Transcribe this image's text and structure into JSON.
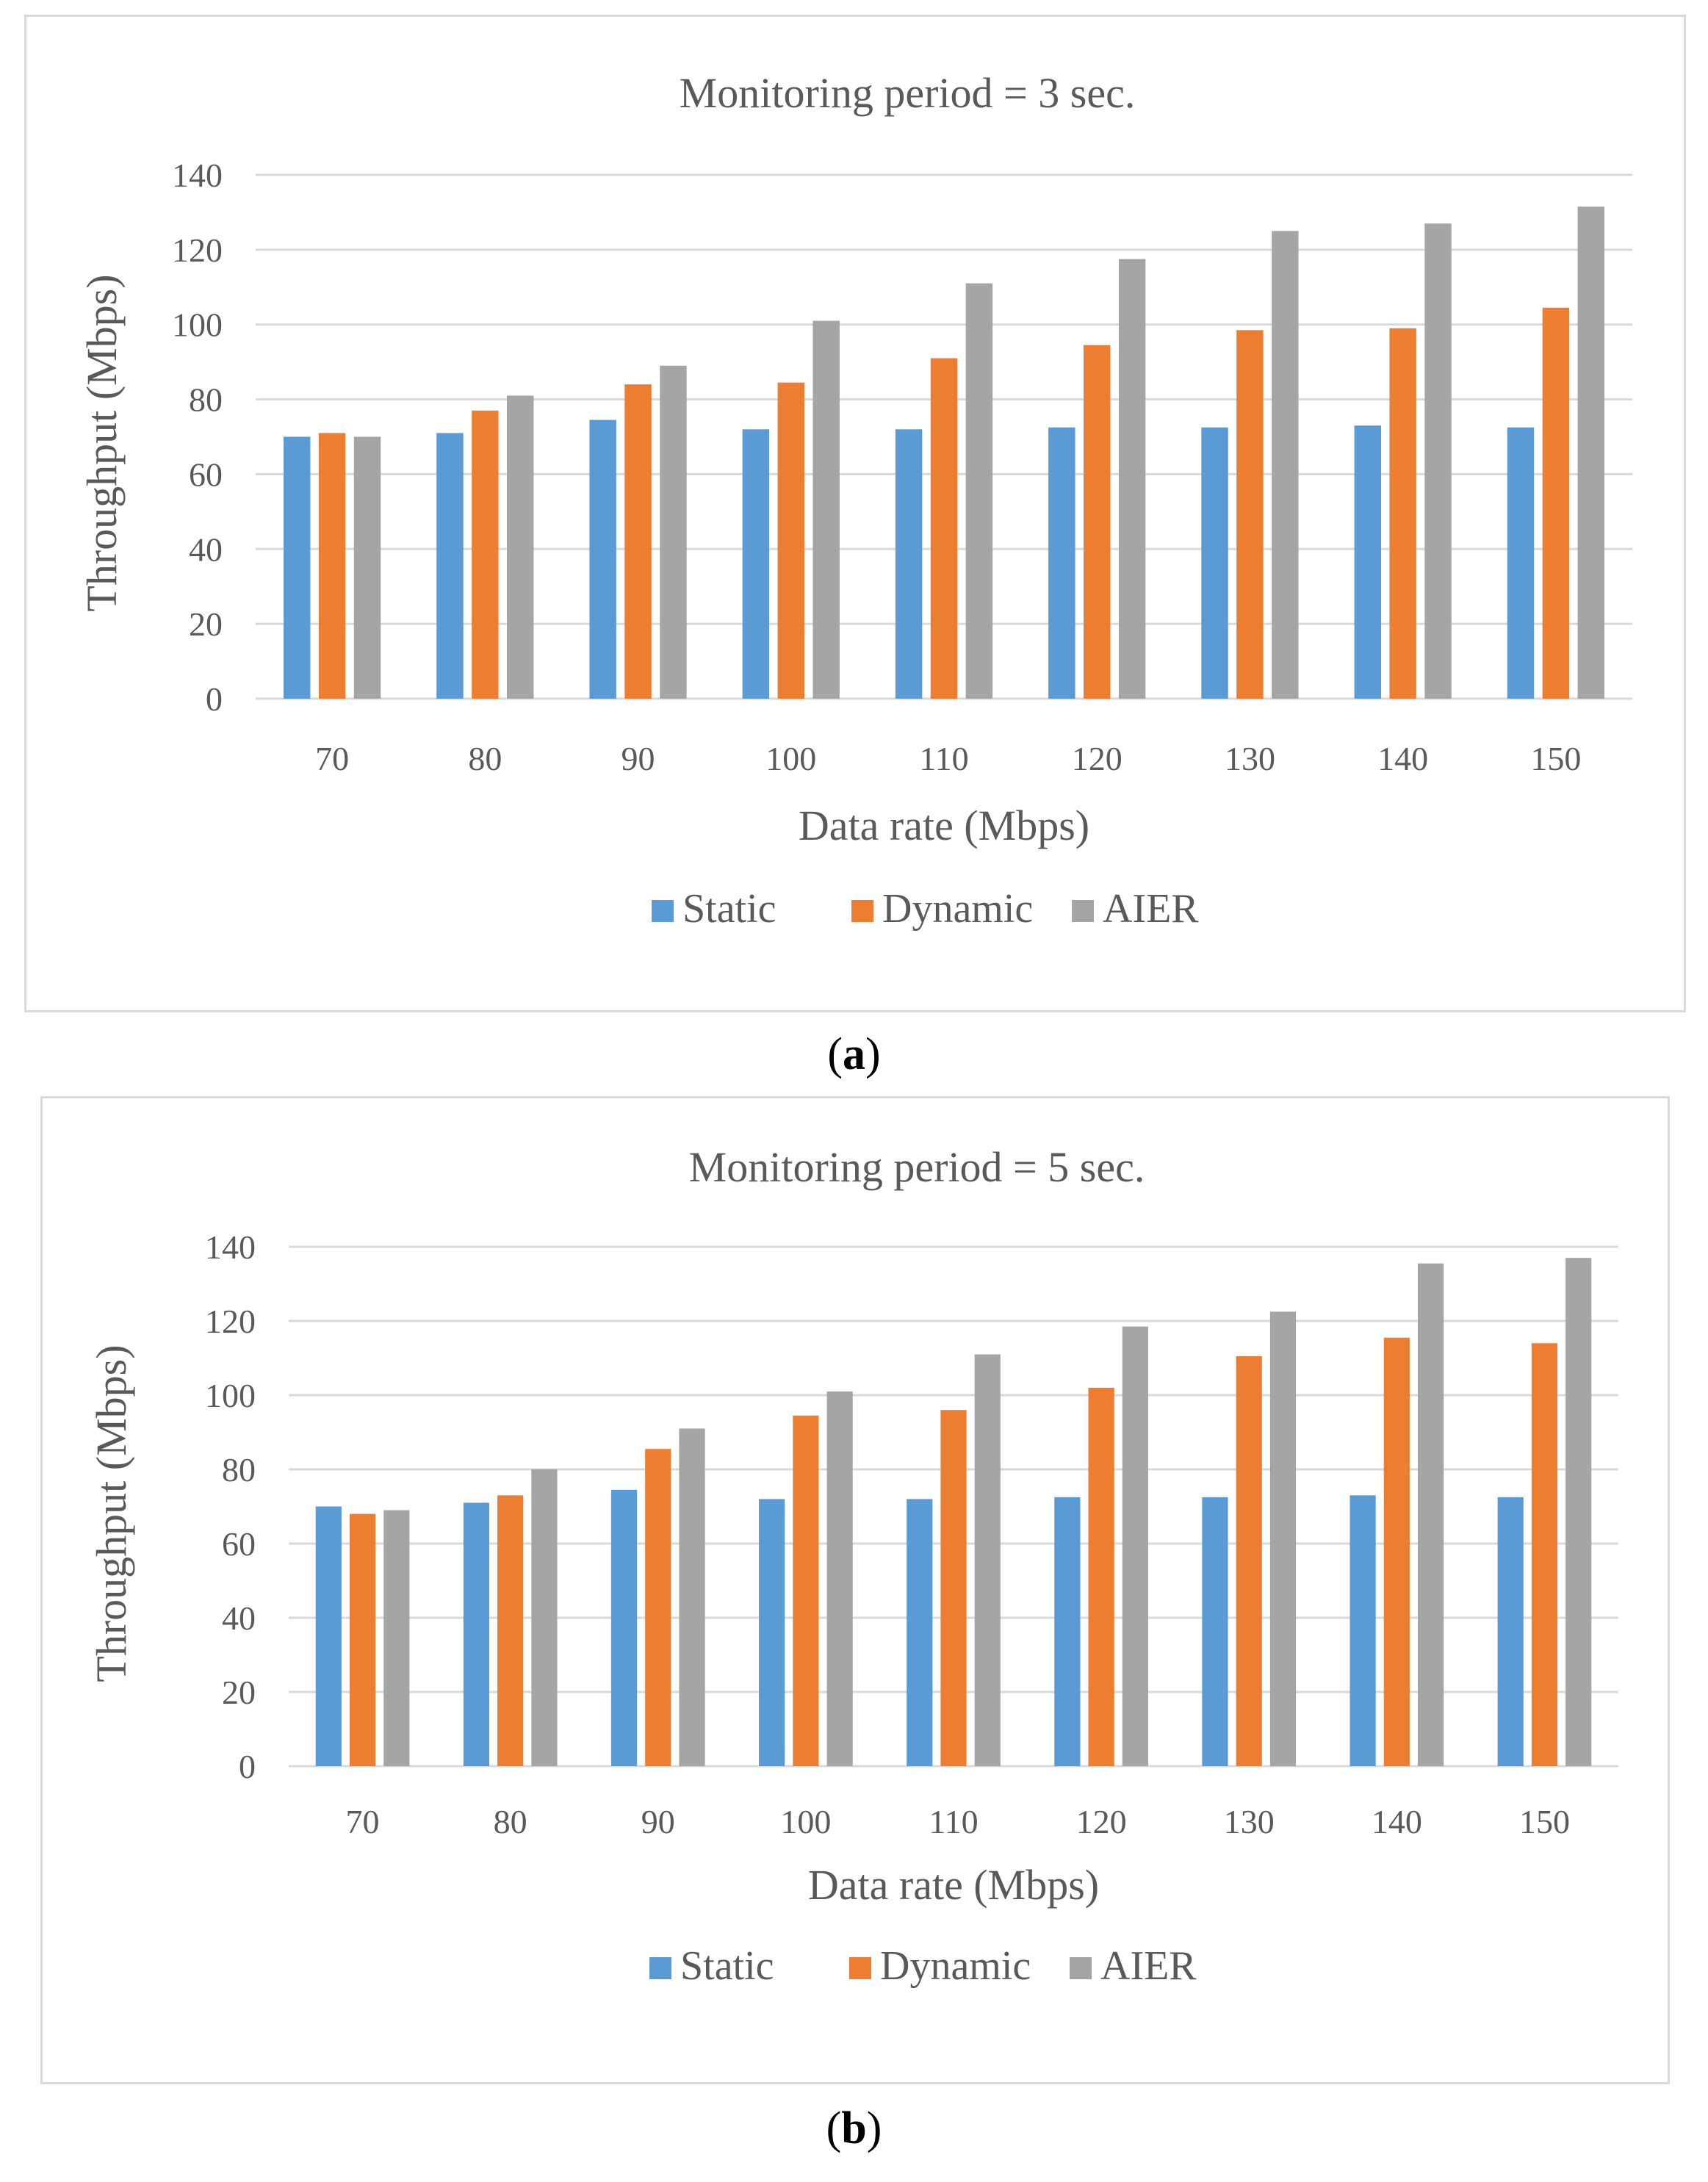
{
  "chart_data": [
    {
      "type": "bar",
      "title": "Monitoring  period = 3 sec.",
      "xlabel": "Data rate (Mbps)",
      "ylabel": "Throughput (Mbps)",
      "ylim": [
        0,
        140
      ],
      "yticks": [
        0,
        20,
        40,
        60,
        80,
        100,
        120,
        140
      ],
      "grid": true,
      "legend_position": "bottom",
      "categories": [
        "70",
        "80",
        "90",
        "100",
        "110",
        "120",
        "130",
        "140",
        "150"
      ],
      "series": [
        {
          "name": "Static",
          "color": "#5b9bd5",
          "values": [
            70,
            71,
            74.5,
            72,
            72,
            72.5,
            72.5,
            73,
            72.5
          ]
        },
        {
          "name": "Dynamic",
          "color": "#ed7d31",
          "values": [
            71,
            77,
            84,
            84.5,
            91,
            94.5,
            98.5,
            99,
            104.5
          ]
        },
        {
          "name": "AIER",
          "color": "#a5a5a5",
          "values": [
            70,
            81,
            89,
            101,
            111,
            117.5,
            125,
            127,
            131.5
          ]
        }
      ],
      "caption": {
        "open": "(",
        "letter": "a",
        "close": ")"
      }
    },
    {
      "type": "bar",
      "title": "Monitoring  period = 5 sec.",
      "xlabel": "Data rate (Mbps)",
      "ylabel": "Throughput (Mbps)",
      "ylim": [
        0,
        140
      ],
      "yticks": [
        0,
        20,
        40,
        60,
        80,
        100,
        120,
        140
      ],
      "grid": true,
      "legend_position": "bottom",
      "categories": [
        "70",
        "80",
        "90",
        "100",
        "110",
        "120",
        "130",
        "140",
        "150"
      ],
      "series": [
        {
          "name": "Static",
          "color": "#5b9bd5",
          "values": [
            70,
            71,
            74.5,
            72,
            72,
            72.5,
            72.5,
            73,
            72.5
          ]
        },
        {
          "name": "Dynamic",
          "color": "#ed7d31",
          "values": [
            68,
            73,
            85.5,
            94.5,
            96,
            102,
            110.5,
            115.5,
            114
          ]
        },
        {
          "name": "AIER",
          "color": "#a5a5a5",
          "values": [
            69,
            80,
            91,
            101,
            111,
            118.5,
            122.5,
            135.5,
            137
          ]
        }
      ],
      "caption": {
        "open": "(",
        "letter": "b",
        "close": ")"
      }
    }
  ]
}
